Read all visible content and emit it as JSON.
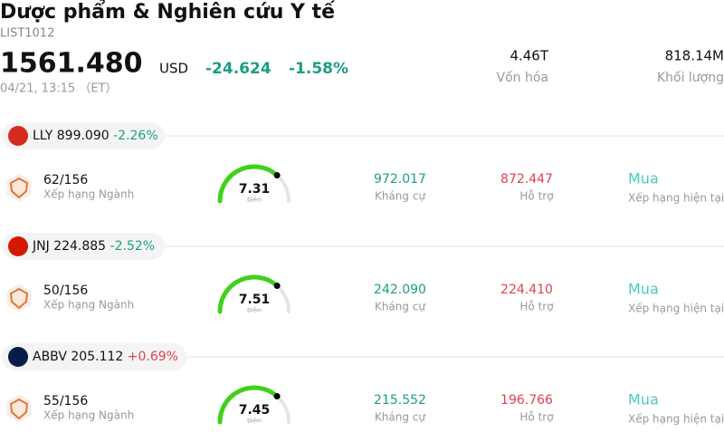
{
  "header": {
    "title": "Dược phẩm & Nghiên cứu Y tế",
    "code": "LIST1012",
    "price": "1561.480",
    "currency": "USD",
    "change": "-24.624",
    "change_pct": "-1.58%",
    "time": "04/21, 13:15 （ET）",
    "stats": [
      {
        "value": "4.46T",
        "label": "Vốn hóa"
      },
      {
        "value": "818.14M",
        "label": "Khối lượng"
      }
    ]
  },
  "stocks": [
    {
      "ticker": "LLY",
      "price": "899.090",
      "change": "-2.26%",
      "logo_color": "#d52b1e",
      "rank": "62/156",
      "rank_label": "Xếp hạng Ngành",
      "score": "7.31",
      "score_label": "Điểm",
      "resistance": "972.017",
      "resistance_label": "Kháng cự",
      "support": "872.447",
      "support_label": "Hỗ trợ",
      "rating": "Mua",
      "rating_label": "Xếp hạng hiện tại"
    },
    {
      "ticker": "JNJ",
      "price": "224.885",
      "change": "-2.52%",
      "logo_color": "#d51900",
      "rank": "50/156",
      "rank_label": "Xếp hạng Ngành",
      "score": "7.51",
      "score_label": "Điểm",
      "resistance": "242.090",
      "resistance_label": "Kháng cự",
      "support": "224.410",
      "support_label": "Hỗ trợ",
      "rating": "Mua",
      "rating_label": "Xếp hạng hiện tại"
    },
    {
      "ticker": "ABBV",
      "price": "205.112",
      "change": "+0.69%",
      "logo_color": "#071d49",
      "rank": "55/156",
      "rank_label": "Xếp hạng Ngành",
      "score": "7.45",
      "score_label": "Điểm",
      "resistance": "215.552",
      "resistance_label": "Kháng cự",
      "support": "196.766",
      "support_label": "Hỗ trợ",
      "rating": "Mua",
      "rating_label": "Xếp hạng hiện tại"
    }
  ]
}
